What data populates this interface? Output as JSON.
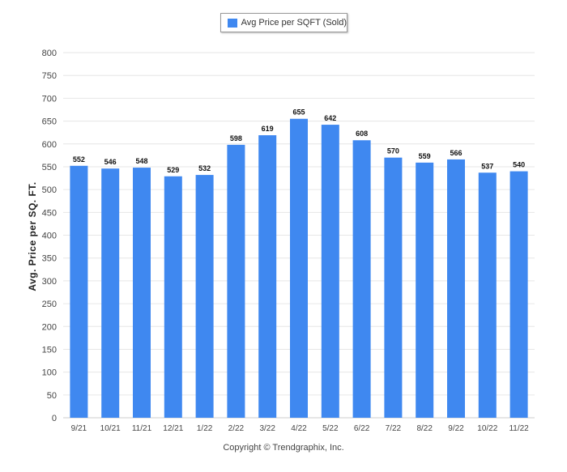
{
  "legend": {
    "label": "Avg Price per SQFT (Sold)"
  },
  "footer": {
    "text": "Copyright © Trendgraphix, Inc."
  },
  "colors": {
    "bar": "#3f88f0",
    "grid": "#e6e6e6",
    "axis": "#cccccc"
  },
  "chart_data": {
    "type": "bar",
    "title": "",
    "xlabel": "",
    "ylabel": "Avg. Price per SQ. FT.",
    "ylim": [
      0,
      800
    ],
    "yticks": [
      0,
      50,
      100,
      150,
      200,
      250,
      300,
      350,
      400,
      450,
      500,
      550,
      600,
      650,
      700,
      750,
      800
    ],
    "grid": true,
    "legend_position": "top-center",
    "categories": [
      "9/21",
      "10/21",
      "11/21",
      "12/21",
      "1/22",
      "2/22",
      "3/22",
      "4/22",
      "5/22",
      "6/22",
      "7/22",
      "8/22",
      "9/22",
      "10/22",
      "11/22"
    ],
    "series": [
      {
        "name": "Avg Price per SQFT (Sold)",
        "values": [
          552,
          546,
          548,
          529,
          532,
          598,
          619,
          655,
          642,
          608,
          570,
          559,
          566,
          537,
          540
        ]
      }
    ]
  }
}
